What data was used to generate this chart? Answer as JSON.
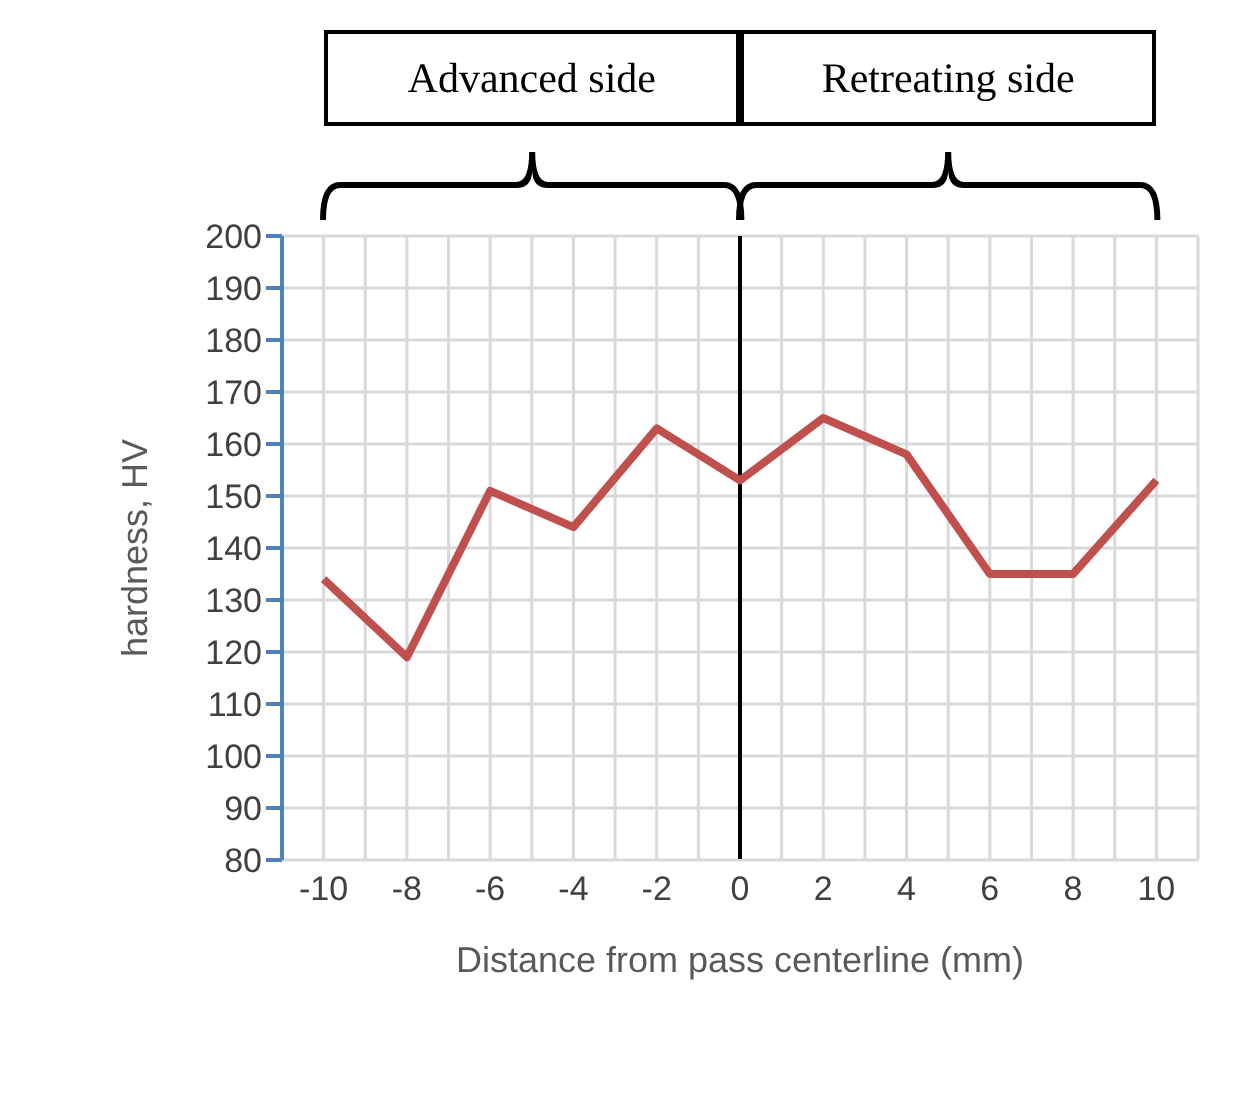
{
  "chart_data": {
    "type": "line",
    "xlabel": "Distance from pass centerline (mm)",
    "ylabel": "hardness, HV",
    "x": [
      -10,
      -8,
      -6,
      -4,
      -2,
      0,
      2,
      4,
      6,
      8,
      10
    ],
    "series": [
      {
        "color": "#c0504d",
        "values": [
          134,
          119,
          151,
          144,
          163,
          153,
          165,
          158,
          135,
          135,
          153
        ]
      }
    ],
    "xlim": [
      -11,
      11
    ],
    "xticks": [
      {
        "value": -11,
        "label": null
      },
      -10,
      {
        "value": -9,
        "label": null
      },
      -8,
      {
        "value": -7,
        "label": null
      },
      -6,
      {
        "value": -5,
        "label": null
      },
      -4,
      {
        "value": -3,
        "label": null
      },
      -2,
      {
        "value": -1,
        "label": null
      },
      0,
      {
        "value": 1,
        "label": null
      },
      2,
      {
        "value": 3,
        "label": null
      },
      4,
      {
        "value": 5,
        "label": null
      },
      6,
      {
        "value": 7,
        "label": null
      },
      8,
      {
        "value": 9,
        "label": null
      },
      10,
      {
        "value": 11,
        "label": null
      }
    ],
    "ylim": [
      80,
      200
    ],
    "yticks": [
      80,
      90,
      100,
      110,
      120,
      130,
      140,
      150,
      160,
      170,
      180,
      190,
      200
    ],
    "grid": true,
    "marker": "none",
    "line_style": "solid",
    "ref_lines": [
      {
        "axis": "x",
        "value": 0,
        "color": "#000000"
      }
    ],
    "annotations": [
      "Advanced side",
      "Retreating side"
    ]
  }
}
